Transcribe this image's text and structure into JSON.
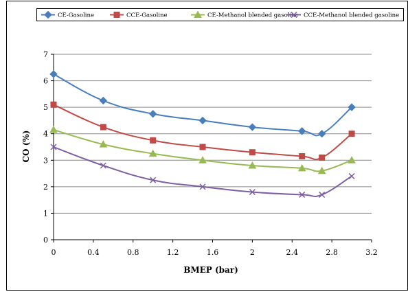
{
  "chart_data": {
    "type": "line",
    "xlabel": "BMEP (bar)",
    "ylabel": "CO (%)",
    "xlim": [
      0,
      3.2
    ],
    "ylim": [
      0,
      7
    ],
    "xticks": [
      "0",
      "0.4",
      "0.8",
      "1.2",
      "1.6",
      "2",
      "2.4",
      "2.8",
      "3.2"
    ],
    "yticks": [
      "0",
      "1",
      "2",
      "3",
      "4",
      "5",
      "6",
      "7"
    ],
    "grid": "horizontal",
    "legend_placement": "top",
    "x": [
      0,
      0.5,
      1.0,
      1.5,
      2.0,
      2.5,
      2.7,
      3.0
    ],
    "series": [
      {
        "name": "CE-Gasoline",
        "color": "#4a7ebb",
        "marker": "diamond",
        "values": [
          6.25,
          5.25,
          4.75,
          4.5,
          4.25,
          4.1,
          4.0,
          5.0
        ]
      },
      {
        "name": "CCE-Gasoline",
        "color": "#be4b48",
        "marker": "square",
        "values": [
          5.1,
          4.25,
          3.75,
          3.5,
          3.3,
          3.15,
          3.1,
          4.0
        ]
      },
      {
        "name": "CE-Methanol blended gasoline",
        "color": "#98b954",
        "marker": "triangle",
        "values": [
          4.15,
          3.6,
          3.25,
          3.0,
          2.8,
          2.7,
          2.6,
          3.0
        ]
      },
      {
        "name": "CCE-Methanol blended gasoline",
        "color": "#7d60a0",
        "marker": "x",
        "values": [
          3.5,
          2.8,
          2.25,
          2.0,
          1.8,
          1.7,
          1.7,
          2.4
        ]
      }
    ]
  }
}
